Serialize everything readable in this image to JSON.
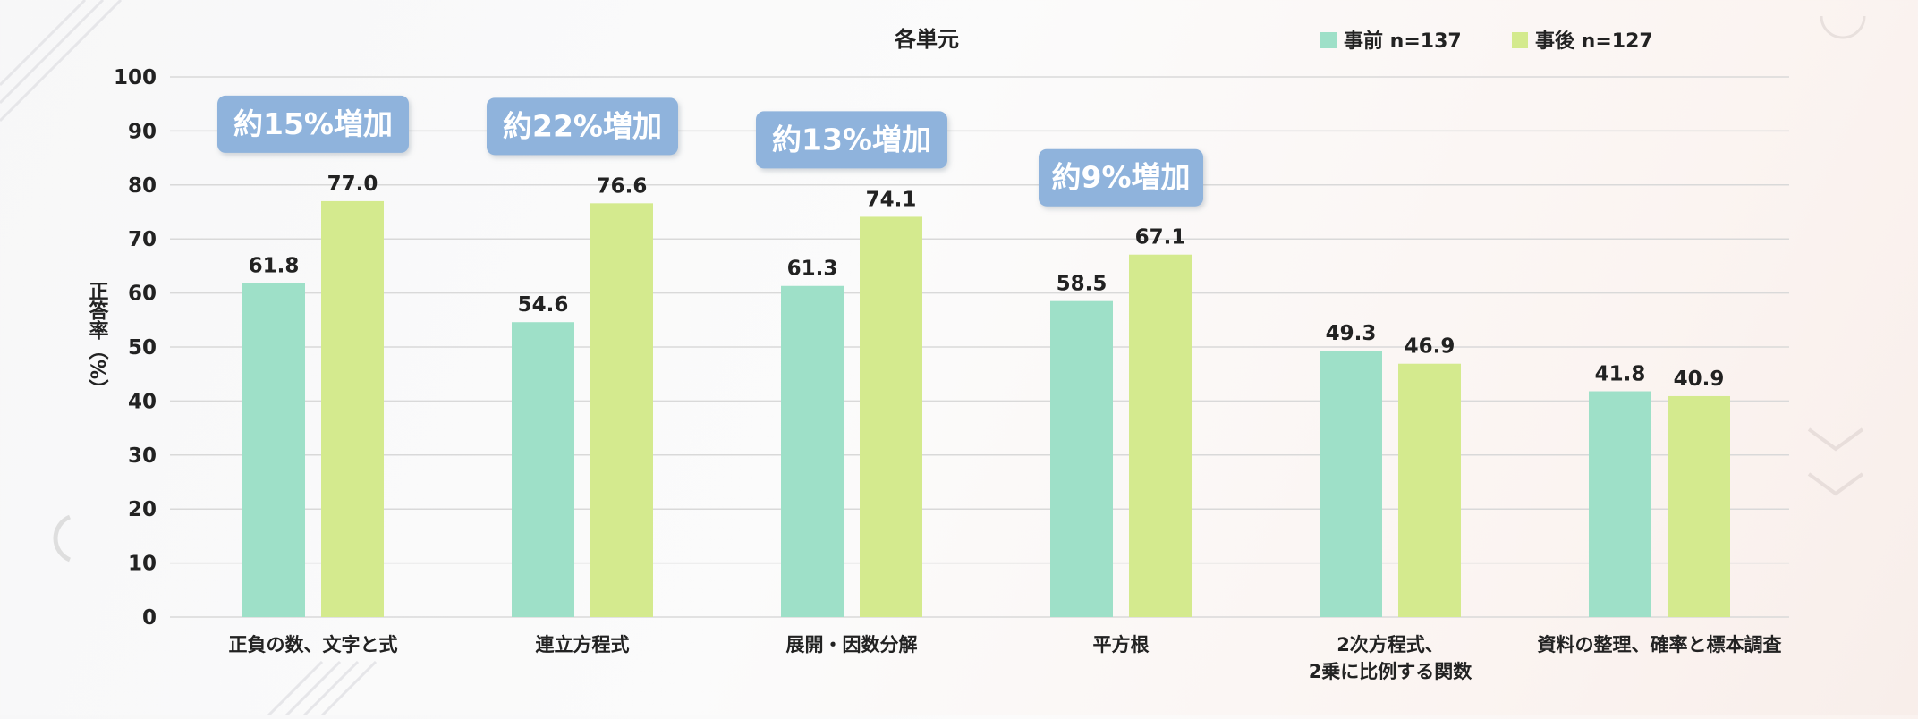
{
  "chart_data": {
    "type": "bar",
    "title": "各単元",
    "ylabel": "正答率（%）",
    "xlabel": "",
    "ylim": [
      0,
      100
    ],
    "yticks": [
      0,
      10,
      20,
      30,
      40,
      50,
      60,
      70,
      80,
      90,
      100
    ],
    "grid": true,
    "legend_position": "top-right",
    "categories": [
      [
        "正負の数、文字と式"
      ],
      [
        "連立方程式"
      ],
      [
        "展開・因数分解"
      ],
      [
        "平方根"
      ],
      [
        "2次方程式、",
        "2乗に比例する関数"
      ],
      [
        "資料の整理、確率と標本調査"
      ]
    ],
    "series": [
      {
        "name": "事前 n=137",
        "color": "#9ee0c8",
        "values": [
          61.8,
          54.6,
          61.3,
          58.5,
          49.3,
          41.8
        ],
        "labels": [
          "61.8",
          "54.6",
          "61.3",
          "58.5",
          "49.3",
          "41.8"
        ]
      },
      {
        "name": "事後 n=127",
        "color": "#d4ea8e",
        "values": [
          77.0,
          76.6,
          74.1,
          67.1,
          46.9,
          40.9
        ],
        "labels": [
          "77.0",
          "76.6",
          "74.1",
          "67.1",
          "46.9",
          "40.9"
        ]
      }
    ],
    "annotations": [
      {
        "text": "約15%増加",
        "category_index": 0
      },
      {
        "text": "約22%増加",
        "category_index": 1
      },
      {
        "text": "約13%増加",
        "category_index": 2
      },
      {
        "text": "約9%増加",
        "category_index": 3
      }
    ],
    "colors": {
      "callout_fill": "#8fb3dc",
      "callout_text": "#ffffff",
      "grid": "#d9d9d9",
      "text": "#222222"
    }
  }
}
